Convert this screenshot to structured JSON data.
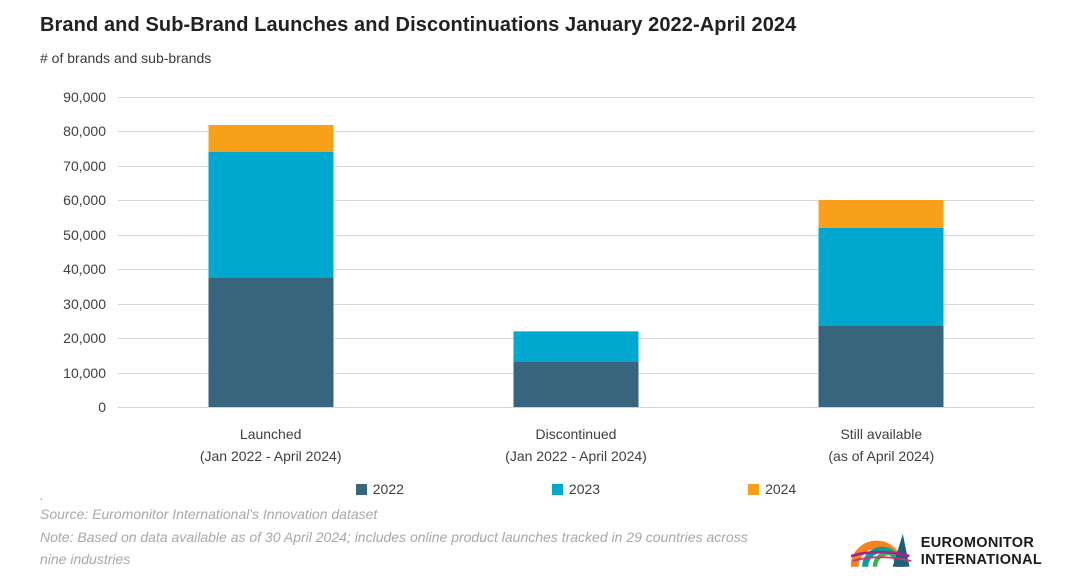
{
  "title": "Brand and Sub-Brand Launches and Discontinuations January 2022-April 2024",
  "subtitle": "# of brands and sub-brands",
  "chart_data": {
    "type": "bar",
    "stacked": true,
    "title": "Brand and Sub-Brand Launches and Discontinuations January 2022-April 2024",
    "ylabel": "# of brands and sub-brands",
    "categories": [
      {
        "line1": "Launched",
        "line2": "(Jan 2022 - April 2024)"
      },
      {
        "line1": "Discontinued",
        "line2": "(Jan 2022 - April 2024)"
      },
      {
        "line1": "Still available",
        "line2": "(as of April 2024)"
      }
    ],
    "series": [
      {
        "name": "2022",
        "color": "#37657E",
        "values": [
          37500,
          13200,
          23500
        ]
      },
      {
        "name": "2023",
        "color": "#00A7CF",
        "values": [
          36500,
          8500,
          28500
        ]
      },
      {
        "name": "2024",
        "color": "#F9A01B",
        "values": [
          8000,
          300,
          8000
        ]
      }
    ],
    "stack_totals": [
      82000,
      22000,
      60000
    ],
    "ylim": [
      0,
      90000
    ],
    "ytick_step": 10000,
    "yticks": [
      "0",
      "10,000",
      "20,000",
      "30,000",
      "40,000",
      "50,000",
      "60,000",
      "70,000",
      "80,000",
      "90,000"
    ],
    "grid": true,
    "legend_position": "bottom"
  },
  "footer": {
    "dot": ".",
    "source": "Source: Euromonitor International's Innovation dataset",
    "note": "Note: Based on data available as of 30 April 2024; includes online product launches tracked in 29 countries across nine industries"
  },
  "logo": {
    "line1": "EUROMONITOR",
    "line2": "INTERNATIONAL",
    "colors": {
      "orange": "#F5821F",
      "teal": "#00A19A",
      "green": "#39B54A",
      "magenta": "#A6228C",
      "navy": "#1F5F7A"
    }
  }
}
